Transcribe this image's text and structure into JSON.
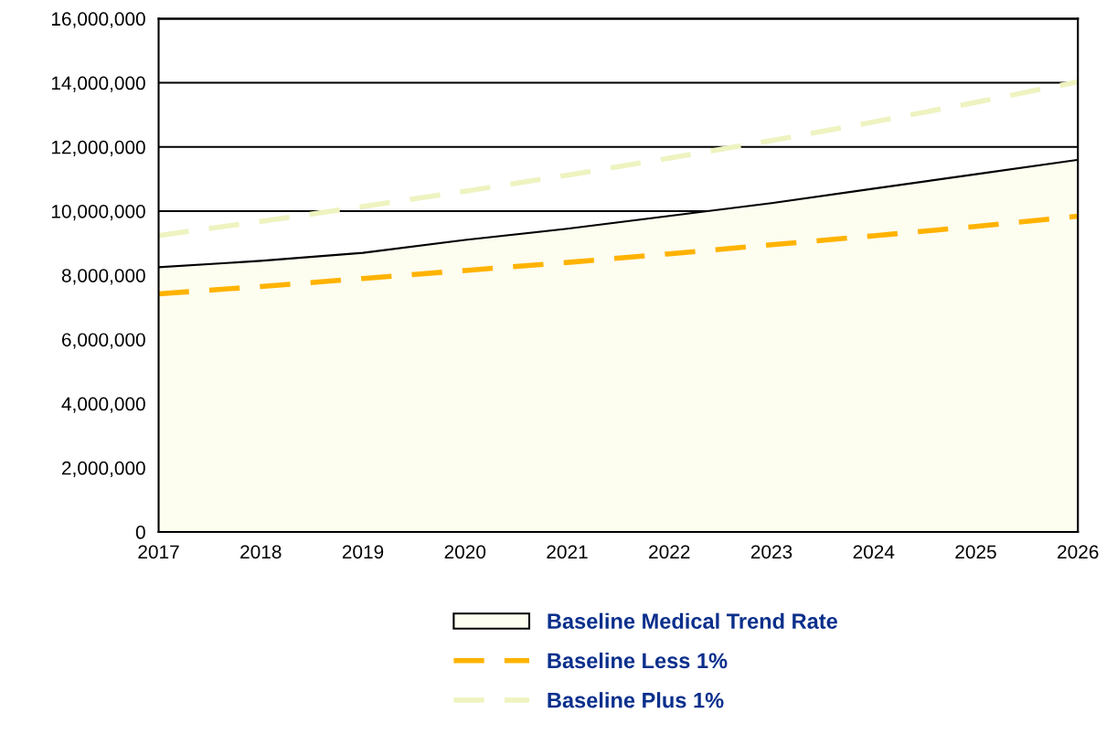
{
  "chart_data": {
    "type": "line",
    "x": [
      2017,
      2018,
      2019,
      2020,
      2021,
      2022,
      2023,
      2024,
      2025,
      2026
    ],
    "series": [
      {
        "name": "Baseline Medical Trend Rate",
        "type": "area",
        "color": "#fdfdf0",
        "values": [
          8250000,
          8450000,
          8700000,
          9100000,
          9450000,
          9850000,
          10250000,
          10700000,
          11150000,
          11600000
        ]
      },
      {
        "name": "Baseline Less 1%",
        "line_style": "dashed",
        "color": "#ffb300",
        "values": [
          7420000,
          7650000,
          7900000,
          8150000,
          8400000,
          8670000,
          8950000,
          9230000,
          9520000,
          9840000
        ]
      },
      {
        "name": "Baseline Plus 1%",
        "line_style": "dashed",
        "color": "#eef3c0",
        "values": [
          9240000,
          9680000,
          10140000,
          10620000,
          11120000,
          11650000,
          12200000,
          12780000,
          13390000,
          14030000
        ]
      }
    ],
    "xlim": [
      2017,
      2026
    ],
    "xticks": [
      2017,
      2018,
      2019,
      2020,
      2021,
      2022,
      2023,
      2024,
      2025,
      2026
    ],
    "ylim": [
      0,
      16000000
    ],
    "yticks": [
      {
        "value": 0,
        "label": "0"
      },
      {
        "value": 2000000,
        "label": "2,000,000"
      },
      {
        "value": 4000000,
        "label": "4,000,000"
      },
      {
        "value": 6000000,
        "label": "6,000,000"
      },
      {
        "value": 8000000,
        "label": "8,000,000"
      },
      {
        "value": 10000000,
        "label": "10,000,000"
      },
      {
        "value": 12000000,
        "label": "12,000,000"
      },
      {
        "value": 14000000,
        "label": "14,000,000"
      },
      {
        "value": 16000000,
        "label": "16,000,000"
      }
    ],
    "grid": "y",
    "legend": "bottom"
  }
}
